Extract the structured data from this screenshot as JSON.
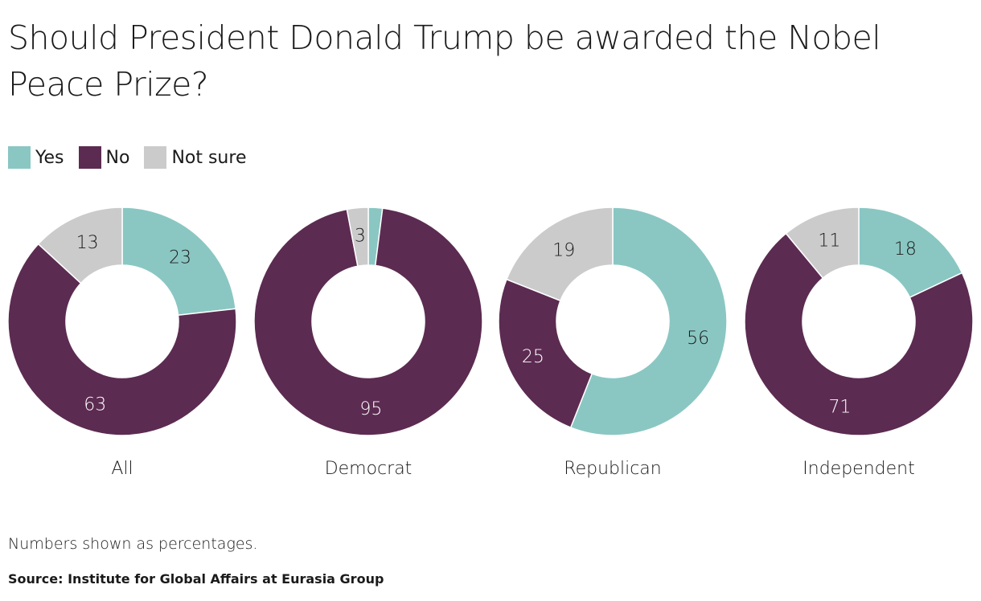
{
  "chart_data": {
    "type": "pie",
    "subtype": "donut",
    "title": "Should President Donald Trump be awarded the Nobel Peace Prize?",
    "legend": [
      "Yes",
      "No",
      "Not sure"
    ],
    "legend_placement": "top-left",
    "colors": {
      "Yes": "#8ac7c3",
      "No": "#5c2b51",
      "Not sure": "#cbcbcb"
    },
    "charts": [
      {
        "category": "All",
        "values": [
          23,
          63,
          13
        ]
      },
      {
        "category": "Democrat",
        "values": [
          2,
          95,
          3
        ]
      },
      {
        "category": "Republican",
        "values": [
          56,
          25,
          19
        ]
      },
      {
        "category": "Independent",
        "values": [
          18,
          71,
          11
        ]
      }
    ],
    "hidden_labels_below": 3
  },
  "note": "Numbers shown as percentages.",
  "source": "Source: Institute for Global Affairs at Eurasia Group"
}
